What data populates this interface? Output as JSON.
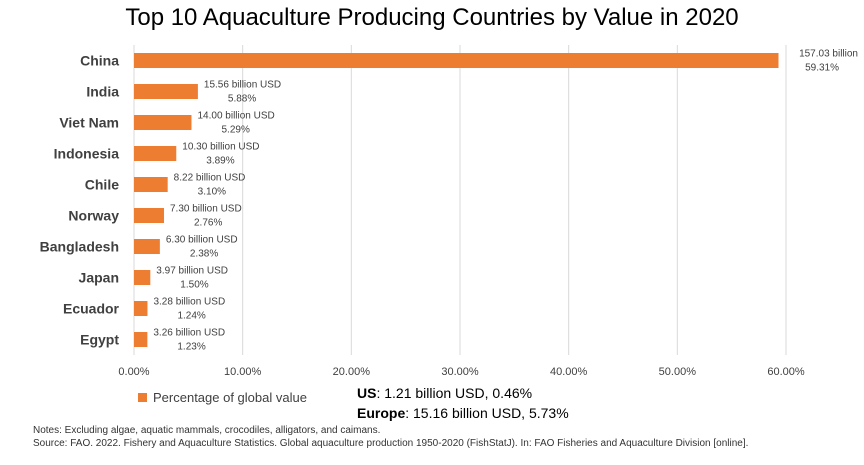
{
  "colors": {
    "bar": "#ED7D31",
    "grid": "#d9d9d9",
    "text": "#404040"
  },
  "legend": {
    "label": "Percentage of global value"
  },
  "summary": {
    "us_label": "US",
    "us_value": ": 1.21 billion USD, 0.46%",
    "europe_label": "Europe",
    "europe_value": ": 15.16 billion USD, 5.73%"
  },
  "footer": {
    "notes": "Notes: Excluding algae, aquatic mammals, crocodiles, alligators, and caimans.",
    "source": "Source: FAO. 2022. Fishery and Aquaculture Statistics. Global aquaculture production 1950-2020 (FishStatJ). In: FAO Fisheries and Aquaculture Division [online]."
  },
  "chart_data": {
    "type": "bar",
    "orientation": "horizontal",
    "title": "Top 10 Aquaculture Producing Countries by Value in 2020",
    "xlim": [
      0,
      60
    ],
    "x_ticks": [
      "0.00%",
      "10.00%",
      "20.00%",
      "30.00%",
      "40.00%",
      "50.00%",
      "60.00%"
    ],
    "grid": "vertical",
    "legend_position": "bottom-left",
    "categories": [
      "China",
      "India",
      "Viet Nam",
      "Indonesia",
      "Chile",
      "Norway",
      "Bangladesh",
      "Japan",
      "Ecuador",
      "Egypt"
    ],
    "series": [
      {
        "name": "Percentage of global value",
        "values": [
          59.31,
          5.88,
          5.29,
          3.89,
          3.1,
          2.76,
          2.38,
          1.5,
          1.24,
          1.23
        ],
        "value_labels": [
          "157.03 billion",
          "15.56 billion USD",
          "14.00 billion USD",
          "10.30 billion USD",
          "8.22 billion USD",
          "7.30 billion USD",
          "6.30 billion USD",
          "3.97 billion USD",
          "3.28 billion USD",
          "3.26 billion USD"
        ],
        "percent_labels": [
          "59.31%",
          "5.88%",
          "5.29%",
          "3.89%",
          "3.10%",
          "2.76%",
          "2.38%",
          "1.50%",
          "1.24%",
          "1.23%"
        ]
      }
    ]
  }
}
